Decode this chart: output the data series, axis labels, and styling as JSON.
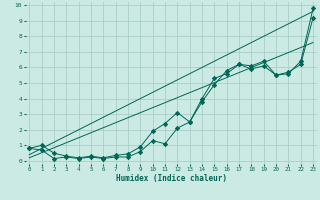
{
  "xlabel": "Humidex (Indice chaleur)",
  "bg_color": "#cceae4",
  "grid_color": "#aacfc8",
  "line_color": "#006655",
  "x_ticks": [
    0,
    1,
    2,
    3,
    4,
    5,
    6,
    7,
    8,
    9,
    10,
    11,
    12,
    13,
    14,
    15,
    16,
    17,
    18,
    19,
    20,
    21,
    22,
    23
  ],
  "y_ticks": [
    0,
    1,
    2,
    3,
    4,
    5,
    6,
    7,
    8,
    9,
    10
  ],
  "xlim": [
    -0.3,
    23.3
  ],
  "ylim": [
    -0.2,
    10.2
  ],
  "line1_x": [
    0,
    1,
    2,
    3,
    4,
    5,
    6,
    7,
    8,
    9,
    10,
    11,
    12,
    13,
    14,
    15,
    16,
    17,
    18,
    19,
    20,
    21,
    22,
    23
  ],
  "line1_y": [
    0.8,
    1.0,
    0.5,
    0.3,
    0.2,
    0.3,
    0.2,
    0.35,
    0.45,
    0.9,
    1.9,
    2.4,
    3.1,
    2.5,
    4.0,
    5.3,
    5.6,
    6.2,
    6.1,
    6.4,
    5.5,
    5.6,
    6.4,
    9.8
  ],
  "line2_x": [
    0,
    1,
    2,
    3,
    4,
    5,
    6,
    7,
    8,
    9,
    10,
    11,
    12,
    13,
    14,
    15,
    16,
    17,
    18,
    19,
    20,
    21,
    22,
    23
  ],
  "line2_y": [
    0.8,
    0.7,
    0.15,
    0.25,
    0.15,
    0.25,
    0.15,
    0.25,
    0.25,
    0.6,
    1.3,
    1.1,
    2.1,
    2.5,
    3.8,
    4.9,
    5.8,
    6.2,
    5.9,
    6.1,
    5.5,
    5.7,
    6.2,
    9.2
  ],
  "line3_x": [
    0,
    23
  ],
  "line3_y": [
    0.4,
    9.6
  ],
  "line4_x": [
    0,
    23
  ],
  "line4_y": [
    0.2,
    7.6
  ]
}
